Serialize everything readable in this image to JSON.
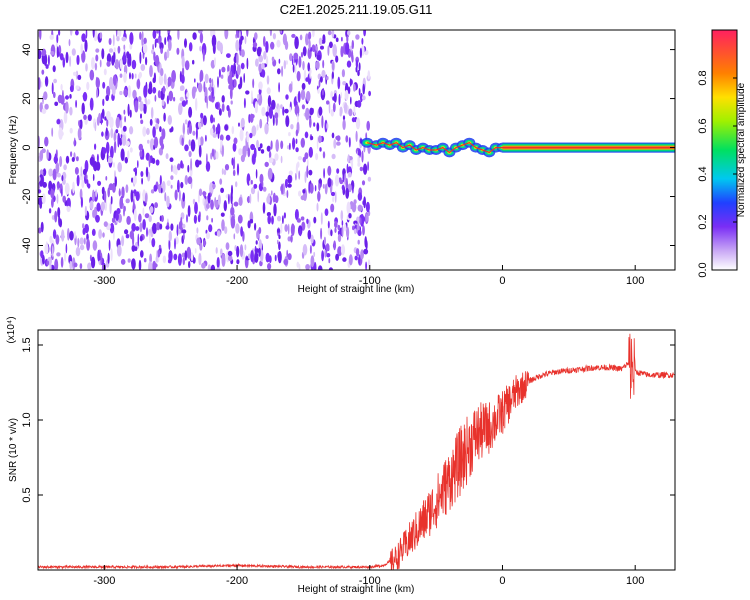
{
  "title": "C2E1.2025.211.19.05.G11",
  "colors": {
    "noise": "#7a2ef5",
    "signal_line": "#e8322c",
    "snr_line": "#e8322c"
  },
  "chart_data": [
    {
      "type": "heatmap",
      "title": "C2E1.2025.211.19.05.G11",
      "xlabel": "Height of straight line (km)",
      "ylabel": "Frequency (Hz)",
      "xlim": [
        -350,
        130
      ],
      "ylim": [
        -50,
        48
      ],
      "x_ticks": [
        -300,
        -200,
        -100,
        0,
        100
      ],
      "y_ticks": [
        -40,
        -20,
        0,
        20,
        40
      ],
      "noise_region": {
        "x": [
          -350,
          -100
        ],
        "y": [
          -50,
          48
        ]
      },
      "signal_trace": {
        "x": [
          -102,
          -95,
          -90,
          -85,
          -80,
          -75,
          -70,
          -65,
          -60,
          -55,
          -50,
          -45,
          -40,
          -35,
          -30,
          -25,
          -20,
          -15,
          -10,
          -5,
          0,
          20,
          50,
          80,
          100,
          130
        ],
        "y": [
          2,
          1,
          2,
          1,
          2,
          0,
          1,
          -1,
          0,
          -1,
          -1,
          0,
          -2,
          0,
          1,
          2,
          0,
          -1,
          -2,
          0,
          0,
          0,
          0,
          0,
          0,
          0
        ]
      },
      "colorbar": {
        "label": "Normalized spectral amplitude",
        "ticks": [
          0.0,
          0.2,
          0.4,
          0.6,
          0.8
        ],
        "range": [
          0,
          1
        ]
      }
    },
    {
      "type": "line",
      "xlabel": "Height of straight line (km)",
      "ylabel": "SNR (10 * v/v)",
      "scale_label": "(x10⁴)",
      "xlim": [
        -350,
        130
      ],
      "ylim": [
        0,
        1.6
      ],
      "x_ticks": [
        -300,
        -200,
        -100,
        0,
        100
      ],
      "y_ticks": [
        0.5,
        1.0,
        1.5
      ],
      "series": [
        {
          "x": [
            -350,
            -300,
            -250,
            -200,
            -150,
            -100,
            -90,
            -80,
            -70,
            -60,
            -50,
            -40,
            -30,
            -20,
            -10,
            0,
            10,
            20,
            30,
            40,
            50,
            60,
            70,
            80,
            90,
            95,
            100,
            110,
            120,
            130
          ],
          "values": [
            0.02,
            0.02,
            0.02,
            0.03,
            0.02,
            0.02,
            0.03,
            0.08,
            0.2,
            0.32,
            0.45,
            0.6,
            0.75,
            0.9,
            0.95,
            1.05,
            1.18,
            1.26,
            1.3,
            1.32,
            1.33,
            1.34,
            1.35,
            1.35,
            1.34,
            1.38,
            1.32,
            1.3,
            1.3,
            1.3
          ]
        }
      ]
    }
  ]
}
